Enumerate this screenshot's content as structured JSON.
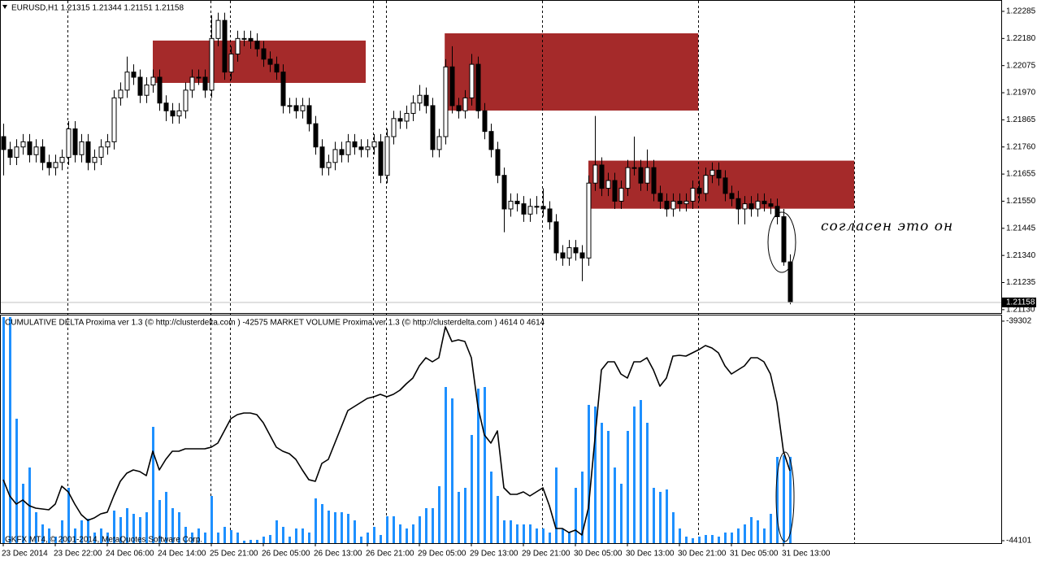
{
  "chart_data": [
    {
      "type": "candlestick",
      "title": "EURUSD,H1  1.21315 1.21344 1.21151 1.21158",
      "annotation": "согласен это он",
      "xlim": [
        -0.5,
        153.5
      ],
      "ylim": [
        1.21117,
        1.22329
      ],
      "yticks": [
        1.22285,
        {
          "value": 1.2218,
          "label": "1.22180"
        },
        1.22075,
        {
          "value": 1.2197,
          "label": "1.21970"
        },
        1.21865,
        {
          "value": 1.2176,
          "label": "1.21760"
        },
        1.21655,
        {
          "value": 1.2155,
          "label": "1.21550"
        },
        1.21445,
        {
          "value": 1.2134,
          "label": "1.21340"
        },
        1.21235,
        {
          "value": 1.2113,
          "label": "1.21130"
        }
      ],
      "last_price": 1.21158,
      "xticks": [
        {
          "value": 0,
          "label": "23 Dec 2014"
        },
        {
          "value": 8,
          "label": "23 Dec 22:00"
        },
        {
          "value": 16,
          "label": "24 Dec 06:00"
        },
        {
          "value": 24,
          "label": "24 Dec 14:00"
        },
        {
          "value": 32,
          "label": "25 Dec 21:00"
        },
        {
          "value": 40,
          "label": "26 Dec 05:00"
        },
        {
          "value": 48,
          "label": "26 Dec 13:00"
        },
        {
          "value": 56,
          "label": "26 Dec 21:00"
        },
        {
          "value": 64,
          "label": "29 Dec 05:00"
        },
        {
          "value": 72,
          "label": "29 Dec 13:00"
        },
        {
          "value": 80,
          "label": "29 Dec 21:00"
        },
        {
          "value": 88,
          "label": "30 Dec 05:00"
        },
        {
          "value": 96,
          "label": "30 Dec 13:00"
        },
        {
          "value": 104,
          "label": "30 Dec 21:00"
        },
        {
          "value": 112,
          "label": "31 Dec 05:00"
        },
        {
          "value": 120,
          "label": "31 Dec 13:00"
        }
      ],
      "separators": [
        10,
        32,
        35,
        57,
        59,
        83,
        107,
        131
      ],
      "zone_color": "#a52a2a",
      "zones": [
        {
          "x": [
            23,
            55.75
          ],
          "y": [
            1.22008,
            1.22172
          ]
        },
        {
          "x": [
            67.9,
            106.9
          ],
          "y": [
            1.21901,
            1.222
          ]
        },
        {
          "x": [
            90,
            130.9
          ],
          "y": [
            1.21521,
            1.21707
          ]
        }
      ],
      "ohlc": [
        [
          1.218,
          1.2185,
          1.2165,
          1.2175
        ],
        [
          1.2175,
          1.2178,
          1.2169,
          1.2172
        ],
        [
          1.2172,
          1.2179,
          1.2169,
          1.2176
        ],
        [
          1.2176,
          1.2181,
          1.2173,
          1.2178
        ],
        [
          1.2178,
          1.2181,
          1.217,
          1.2173
        ],
        [
          1.2173,
          1.2179,
          1.217,
          1.2176
        ],
        [
          1.2176,
          1.2179,
          1.2167,
          1.217
        ],
        [
          1.217,
          1.2173,
          1.2165,
          1.2168
        ],
        [
          1.2168,
          1.2173,
          1.2165,
          1.217
        ],
        [
          1.217,
          1.2175,
          1.2167,
          1.2172
        ],
        [
          1.2172,
          1.2186,
          1.2169,
          1.2183
        ],
        [
          1.2183,
          1.2186,
          1.217,
          1.2173
        ],
        [
          1.2173,
          1.2181,
          1.217,
          1.2178
        ],
        [
          1.2178,
          1.2181,
          1.2167,
          1.217
        ],
        [
          1.217,
          1.2175,
          1.2167,
          1.2172
        ],
        [
          1.2172,
          1.2179,
          1.2169,
          1.2176
        ],
        [
          1.2176,
          1.2181,
          1.2173,
          1.2178
        ],
        [
          1.2178,
          1.2198,
          1.2175,
          1.2195
        ],
        [
          1.2195,
          1.2201,
          1.2192,
          1.2198
        ],
        [
          1.2198,
          1.2211,
          1.2195,
          1.2205
        ],
        [
          1.2205,
          1.2208,
          1.22,
          1.2203
        ],
        [
          1.2203,
          1.2206,
          1.2193,
          1.2196
        ],
        [
          1.2196,
          1.2203,
          1.2193,
          1.22
        ],
        [
          1.22,
          1.2206,
          1.2197,
          1.2203
        ],
        [
          1.2203,
          1.2206,
          1.219,
          1.2193
        ],
        [
          1.2193,
          1.2196,
          1.2186,
          1.219
        ],
        [
          1.219,
          1.2193,
          1.2185,
          1.2188
        ],
        [
          1.2188,
          1.2193,
          1.2185,
          1.219
        ],
        [
          1.219,
          1.2201,
          1.2187,
          1.2198
        ],
        [
          1.2198,
          1.2206,
          1.2195,
          1.2203
        ],
        [
          1.2203,
          1.2206,
          1.22,
          1.2203
        ],
        [
          1.2203,
          1.2206,
          1.2195,
          1.2198
        ],
        [
          1.2198,
          1.2227,
          1.2195,
          1.2218
        ],
        [
          1.2218,
          1.2228,
          1.2215,
          1.2225
        ],
        [
          1.2225,
          1.2228,
          1.2202,
          1.2205
        ],
        [
          1.2205,
          1.2215,
          1.2202,
          1.2212
        ],
        [
          1.2212,
          1.2221,
          1.2209,
          1.2218
        ],
        [
          1.2218,
          1.2221,
          1.2215,
          1.2218
        ],
        [
          1.2218,
          1.2221,
          1.2214,
          1.2217
        ],
        [
          1.2217,
          1.222,
          1.2211,
          1.2214
        ],
        [
          1.2214,
          1.2217,
          1.2207,
          1.221
        ],
        [
          1.221,
          1.2213,
          1.2205,
          1.2208
        ],
        [
          1.2208,
          1.2211,
          1.2202,
          1.2205
        ],
        [
          1.2205,
          1.2208,
          1.2189,
          1.2192
        ],
        [
          1.2192,
          1.2195,
          1.2189,
          1.2192
        ],
        [
          1.2192,
          1.2195,
          1.2187,
          1.219
        ],
        [
          1.219,
          1.2195,
          1.2187,
          1.2192
        ],
        [
          1.2192,
          1.2195,
          1.2182,
          1.2185
        ],
        [
          1.2185,
          1.2188,
          1.2173,
          1.2176
        ],
        [
          1.2176,
          1.2179,
          1.2165,
          1.2168
        ],
        [
          1.2168,
          1.2173,
          1.2165,
          1.217
        ],
        [
          1.217,
          1.2178,
          1.2167,
          1.2175
        ],
        [
          1.2175,
          1.2178,
          1.217,
          1.2173
        ],
        [
          1.2173,
          1.2181,
          1.217,
          1.2178
        ],
        [
          1.2178,
          1.2181,
          1.2173,
          1.2176
        ],
        [
          1.2176,
          1.2179,
          1.2172,
          1.2175
        ],
        [
          1.2175,
          1.2179,
          1.2172,
          1.2176
        ],
        [
          1.2176,
          1.2181,
          1.2173,
          1.2178
        ],
        [
          1.2178,
          1.2181,
          1.2162,
          1.2165
        ],
        [
          1.2165,
          1.2183,
          1.2162,
          1.218
        ],
        [
          1.218,
          1.219,
          1.2177,
          1.2187
        ],
        [
          1.2187,
          1.219,
          1.2183,
          1.2186
        ],
        [
          1.2186,
          1.2192,
          1.2183,
          1.2189
        ],
        [
          1.2189,
          1.2196,
          1.2186,
          1.2193
        ],
        [
          1.2193,
          1.22,
          1.219,
          1.2196
        ],
        [
          1.2196,
          1.2199,
          1.2189,
          1.2192
        ],
        [
          1.2192,
          1.2195,
          1.2172,
          1.2175
        ],
        [
          1.2175,
          1.2183,
          1.2172,
          1.218
        ],
        [
          1.218,
          1.221,
          1.2177,
          1.2207
        ],
        [
          1.2207,
          1.2215,
          1.2189,
          1.2192
        ],
        [
          1.2192,
          1.2195,
          1.2187,
          1.219
        ],
        [
          1.219,
          1.2198,
          1.2187,
          1.2195
        ],
        [
          1.2195,
          1.2212,
          1.2192,
          1.2208
        ],
        [
          1.2208,
          1.2211,
          1.2187,
          1.219
        ],
        [
          1.219,
          1.2193,
          1.2179,
          1.2182
        ],
        [
          1.2182,
          1.2185,
          1.2172,
          1.2175
        ],
        [
          1.2175,
          1.2178,
          1.2162,
          1.2165
        ],
        [
          1.2165,
          1.2168,
          1.2143,
          1.2152
        ],
        [
          1.2152,
          1.2158,
          1.2149,
          1.2155
        ],
        [
          1.2155,
          1.2158,
          1.2151,
          1.2154
        ],
        [
          1.2154,
          1.2157,
          1.2147,
          1.215
        ],
        [
          1.215,
          1.2156,
          1.2147,
          1.2153
        ],
        [
          1.2153,
          1.2157,
          1.215,
          1.2153
        ],
        [
          1.2153,
          1.216,
          1.2149,
          1.2152
        ],
        [
          1.2152,
          1.2155,
          1.2144,
          1.2147
        ],
        [
          1.2147,
          1.215,
          1.2132,
          1.2135
        ],
        [
          1.2135,
          1.2138,
          1.213,
          1.2133
        ],
        [
          1.2133,
          1.214,
          1.213,
          1.2137
        ],
        [
          1.2137,
          1.214,
          1.2132,
          1.2135
        ],
        [
          1.2135,
          1.2138,
          1.2124,
          1.2133
        ],
        [
          1.2133,
          1.2165,
          1.213,
          1.2162
        ],
        [
          1.2162,
          1.2188,
          1.2159,
          1.2169
        ],
        [
          1.2169,
          1.2172,
          1.2157,
          1.216
        ],
        [
          1.216,
          1.2166,
          1.2157,
          1.2163
        ],
        [
          1.2163,
          1.2166,
          1.2152,
          1.2155
        ],
        [
          1.2155,
          1.2163,
          1.2152,
          1.216
        ],
        [
          1.216,
          1.2171,
          1.2157,
          1.2168
        ],
        [
          1.2168,
          1.218,
          1.2165,
          1.2168
        ],
        [
          1.2168,
          1.2171,
          1.2159,
          1.2162
        ],
        [
          1.2162,
          1.2175,
          1.2159,
          1.2168
        ],
        [
          1.2168,
          1.2171,
          1.2155,
          1.2158
        ],
        [
          1.2158,
          1.2161,
          1.2152,
          1.2155
        ],
        [
          1.2155,
          1.2158,
          1.2149,
          1.2152
        ],
        [
          1.2152,
          1.2158,
          1.2149,
          1.2155
        ],
        [
          1.2155,
          1.2158,
          1.2151,
          1.2154
        ],
        [
          1.2154,
          1.2158,
          1.2151,
          1.2155
        ],
        [
          1.2155,
          1.2163,
          1.2152,
          1.216
        ],
        [
          1.216,
          1.2163,
          1.2155,
          1.2158
        ],
        [
          1.2158,
          1.2168,
          1.2155,
          1.2165
        ],
        [
          1.2165,
          1.217,
          1.2162,
          1.2167
        ],
        [
          1.2167,
          1.217,
          1.2161,
          1.2164
        ],
        [
          1.2164,
          1.2167,
          1.2155,
          1.2158
        ],
        [
          1.2158,
          1.2161,
          1.2153,
          1.2156
        ],
        [
          1.2156,
          1.2159,
          1.2146,
          1.2152
        ],
        [
          1.2152,
          1.2157,
          1.2146,
          1.2154
        ],
        [
          1.2154,
          1.2157,
          1.2149,
          1.2152
        ],
        [
          1.2152,
          1.2158,
          1.2149,
          1.2155
        ],
        [
          1.2155,
          1.2158,
          1.2151,
          1.2154
        ],
        [
          1.2154,
          1.2156,
          1.215,
          1.2153
        ],
        [
          1.2153,
          1.2156,
          1.2146,
          1.2149
        ],
        [
          1.2149,
          1.2152,
          1.213,
          1.21315
        ],
        [
          1.21315,
          1.21344,
          1.21151,
          1.21158
        ]
      ]
    },
    {
      "type": "line-bar",
      "title": "CUMULATIVE DELTA Proxima ver 1.3 (© http://clusterdelta.com ) -42575  MARKET VOLUME Proxima ver 1.3 (© http://clusterdelta.com ) 4614 0 4614",
      "footer": "GKFX MT4, © 2001-2014, MetaQuotes Software Corp.",
      "xlim": [
        -0.5,
        153.5
      ],
      "ylim": [
        -44154,
        -39178
      ],
      "yticks": [
        -39302,
        -44101
      ],
      "y2lim": [
        0,
        12180
      ],
      "series": [
        {
          "type": "line",
          "color": "#000000",
          "values": [
            -42768,
            -43123,
            -43301,
            -43212,
            -43336,
            -43389,
            -43407,
            -43425,
            -43301,
            -42910,
            -43034,
            -43301,
            -43532,
            -43656,
            -43603,
            -43514,
            -43478,
            -43123,
            -42803,
            -42625,
            -42554,
            -42590,
            -42679,
            -42146,
            -42554,
            -42323,
            -42146,
            -42146,
            -42092,
            -42092,
            -42092,
            -42092,
            -42057,
            -41968,
            -41701,
            -41435,
            -41346,
            -41310,
            -41310,
            -41346,
            -41524,
            -41790,
            -42057,
            -42146,
            -42199,
            -42323,
            -42554,
            -42768,
            -42803,
            -42412,
            -42323,
            -41968,
            -41612,
            -41257,
            -41168,
            -41079,
            -40991,
            -40955,
            -40902,
            -40955,
            -40902,
            -40813,
            -40671,
            -40546,
            -40280,
            -40102,
            -40191,
            -40102,
            -39427,
            -39747,
            -39711,
            -39747,
            -40102,
            -41168,
            -41790,
            -41968,
            -41701,
            -42945,
            -43087,
            -43087,
            -43034,
            -43123,
            -43034,
            -42945,
            -43336,
            -43834,
            -43834,
            -43923,
            -43869,
            -43976,
            -43389,
            -41879,
            -40369,
            -40191,
            -40191,
            -40457,
            -40546,
            -40191,
            -40191,
            -40102,
            -40369,
            -40724,
            -40546,
            -40067,
            -40049,
            -40067,
            -39995,
            -39924,
            -39835,
            -39889,
            -39995,
            -40280,
            -40457,
            -40369,
            -40280,
            -40102,
            -40102,
            -40191,
            -40457,
            -41079,
            -42146,
            -42575
          ]
        },
        {
          "type": "bar",
          "axis": "y2",
          "color": "#1e90ff",
          "values": [
            12093,
            12093,
            6656,
            3176,
            4046,
            1653,
            1001,
            783,
            348,
            1218,
            2958,
            783,
            1218,
            1305,
            566,
            783,
            566,
            1740,
            1392,
            1871,
            1566,
            1392,
            1653,
            6221,
            2306,
            2741,
            1871,
            1653,
            870,
            566,
            783,
            566,
            2523,
            566,
            870,
            696,
            566,
            131,
            174,
            174,
            348,
            435,
            1218,
            870,
            348,
            783,
            783,
            566,
            2393,
            2088,
            1740,
            1653,
            1653,
            1566,
            1218,
            348,
            566,
            870,
            435,
            1436,
            1436,
            1001,
            783,
            1001,
            1436,
            1871,
            1871,
            3045,
            8352,
            7743,
            2741,
            2958,
            5786,
            8265,
            8352,
            3828,
            2523,
            1218,
            1218,
            1001,
            1001,
            1001,
            783,
            783,
            566,
            4046,
            783,
            566,
            2958,
            3828,
            7395,
            7308,
            6438,
            6003,
            4046,
            3176,
            6003,
            7308,
            7656,
            6438,
            2958,
            2741,
            2871,
            1653,
            783,
            348,
            261,
            348,
            435,
            435,
            348,
            566,
            566,
            783,
            1001,
            1392,
            1218,
            783,
            1566,
            4611,
            4698,
            4614
          ]
        }
      ]
    }
  ]
}
